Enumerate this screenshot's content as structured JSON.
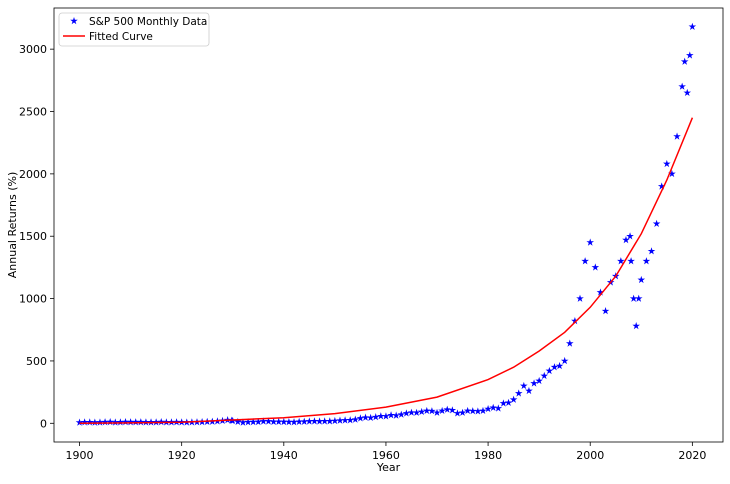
{
  "chart_data": {
    "type": "scatter",
    "title": "",
    "xlabel": "Year",
    "ylabel": "Annual Returns (%)",
    "xlim": [
      1895,
      2026
    ],
    "ylim": [
      -150,
      3330
    ],
    "x_ticks": [
      1900,
      1920,
      1940,
      1960,
      1980,
      2000,
      2020
    ],
    "y_ticks": [
      0,
      500,
      1000,
      1500,
      2000,
      2500,
      3000
    ],
    "grid": false,
    "legend_position": "top-left",
    "series": [
      {
        "name": "S&P 500 Monthly Data",
        "kind": "scatter",
        "marker": "star",
        "color": "#0000ff",
        "points": [
          [
            1900,
            6
          ],
          [
            1901,
            8
          ],
          [
            1902,
            8
          ],
          [
            1903,
            6
          ],
          [
            1904,
            7
          ],
          [
            1905,
            9
          ],
          [
            1906,
            10
          ],
          [
            1907,
            7
          ],
          [
            1908,
            8
          ],
          [
            1909,
            10
          ],
          [
            1910,
            9
          ],
          [
            1911,
            9
          ],
          [
            1912,
            9
          ],
          [
            1913,
            8
          ],
          [
            1914,
            8
          ],
          [
            1915,
            8
          ],
          [
            1916,
            10
          ],
          [
            1917,
            8
          ],
          [
            1918,
            8
          ],
          [
            1919,
            9
          ],
          [
            1920,
            8
          ],
          [
            1921,
            7
          ],
          [
            1922,
            8
          ],
          [
            1923,
            9
          ],
          [
            1924,
            10
          ],
          [
            1925,
            12
          ],
          [
            1926,
            13
          ],
          [
            1927,
            16
          ],
          [
            1928,
            20
          ],
          [
            1929,
            26
          ],
          [
            1929.8,
            22
          ],
          [
            1930,
            20
          ],
          [
            1931,
            12
          ],
          [
            1932,
            6
          ],
          [
            1933,
            9
          ],
          [
            1934,
            10
          ],
          [
            1935,
            11
          ],
          [
            1936,
            15
          ],
          [
            1937,
            15
          ],
          [
            1938,
            12
          ],
          [
            1939,
            12
          ],
          [
            1940,
            11
          ],
          [
            1941,
            10
          ],
          [
            1942,
            9
          ],
          [
            1943,
            12
          ],
          [
            1944,
            13
          ],
          [
            1945,
            15
          ],
          [
            1946,
            16
          ],
          [
            1947,
            15
          ],
          [
            1948,
            16
          ],
          [
            1949,
            16
          ],
          [
            1950,
            19
          ],
          [
            1951,
            22
          ],
          [
            1952,
            24
          ],
          [
            1953,
            25
          ],
          [
            1954,
            30
          ],
          [
            1955,
            40
          ],
          [
            1956,
            46
          ],
          [
            1957,
            44
          ],
          [
            1958,
            50
          ],
          [
            1959,
            57
          ],
          [
            1960,
            56
          ],
          [
            1961,
            65
          ],
          [
            1962,
            62
          ],
          [
            1963,
            70
          ],
          [
            1964,
            80
          ],
          [
            1965,
            86
          ],
          [
            1966,
            85
          ],
          [
            1967,
            92
          ],
          [
            1968,
            100
          ],
          [
            1969,
            98
          ],
          [
            1970,
            85
          ],
          [
            1971,
            100
          ],
          [
            1972,
            110
          ],
          [
            1973,
            105
          ],
          [
            1974,
            80
          ],
          [
            1975,
            85
          ],
          [
            1976,
            100
          ],
          [
            1977,
            98
          ],
          [
            1978,
            96
          ],
          [
            1979,
            100
          ],
          [
            1980,
            115
          ],
          [
            1981,
            125
          ],
          [
            1982,
            120
          ],
          [
            1983,
            160
          ],
          [
            1984,
            165
          ],
          [
            1985,
            190
          ],
          [
            1986,
            240
          ],
          [
            1987,
            300
          ],
          [
            1988,
            260
          ],
          [
            1989,
            320
          ],
          [
            1990,
            340
          ],
          [
            1991,
            380
          ],
          [
            1992,
            420
          ],
          [
            1993,
            450
          ],
          [
            1994,
            460
          ],
          [
            1995,
            500
          ],
          [
            1996,
            640
          ],
          [
            1997,
            820
          ],
          [
            1998,
            1000
          ],
          [
            1999,
            1300
          ],
          [
            2000,
            1450
          ],
          [
            2001,
            1250
          ],
          [
            2002,
            1050
          ],
          [
            2003,
            900
          ],
          [
            2004,
            1130
          ],
          [
            2005,
            1180
          ],
          [
            2006,
            1300
          ],
          [
            2007,
            1470
          ],
          [
            2007.8,
            1500
          ],
          [
            2008,
            1300
          ],
          [
            2008.5,
            1000
          ],
          [
            2009,
            780
          ],
          [
            2009.5,
            1000
          ],
          [
            2010,
            1150
          ],
          [
            2011,
            1300
          ],
          [
            2012,
            1380
          ],
          [
            2013,
            1600
          ],
          [
            2014,
            1900
          ],
          [
            2015,
            2080
          ],
          [
            2016,
            2000
          ],
          [
            2017,
            2300
          ],
          [
            2018,
            2700
          ],
          [
            2018.5,
            2900
          ],
          [
            2019,
            2650
          ],
          [
            2019.5,
            2950
          ],
          [
            2020,
            3180
          ]
        ]
      },
      {
        "name": "Fitted Curve",
        "kind": "line",
        "color": "#ff0000",
        "points": [
          [
            1900,
            0
          ],
          [
            1920,
            8
          ],
          [
            1940,
            45
          ],
          [
            1950,
            78
          ],
          [
            1960,
            130
          ],
          [
            1970,
            210
          ],
          [
            1980,
            350
          ],
          [
            1985,
            450
          ],
          [
            1990,
            580
          ],
          [
            1995,
            730
          ],
          [
            2000,
            930
          ],
          [
            2005,
            1180
          ],
          [
            2010,
            1520
          ],
          [
            2015,
            1950
          ],
          [
            2020,
            2450
          ]
        ]
      }
    ]
  }
}
